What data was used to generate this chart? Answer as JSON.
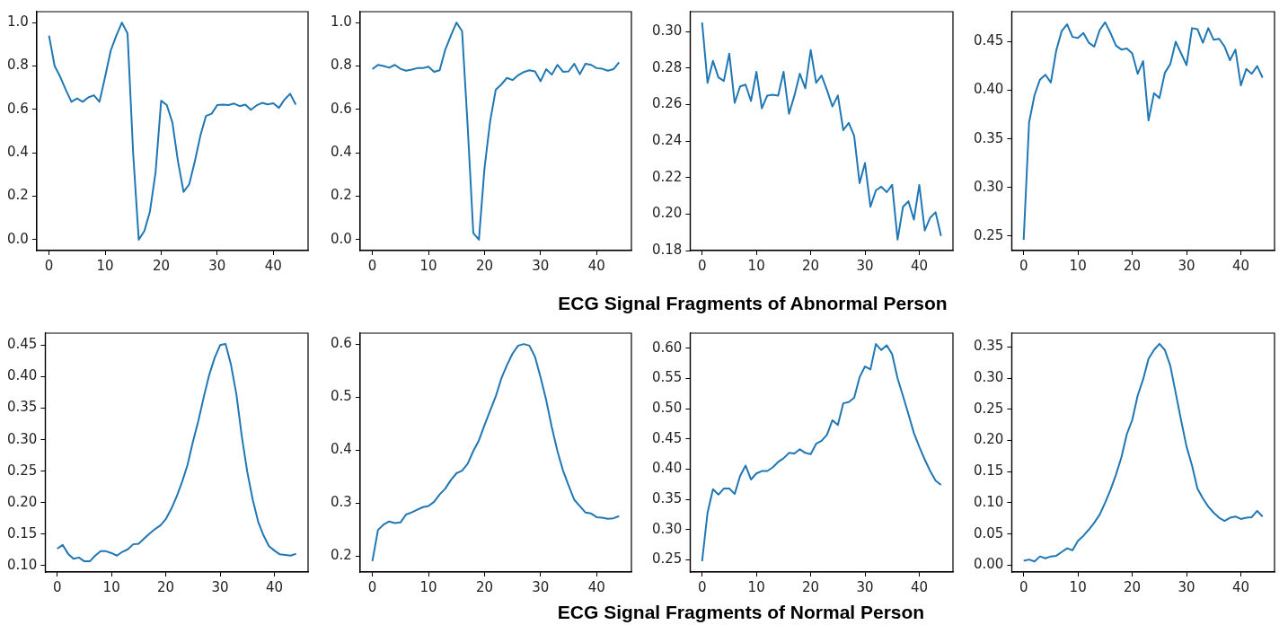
{
  "chart_data": [
    {
      "type": "line",
      "x": [
        0,
        1,
        2,
        3,
        4,
        5,
        6,
        7,
        8,
        9,
        10,
        11,
        12,
        13,
        14,
        15,
        16,
        17,
        18,
        19,
        20,
        21,
        22,
        23,
        24,
        25,
        26,
        27,
        28,
        29,
        30,
        31,
        32,
        33,
        34,
        35,
        36,
        37,
        38,
        39,
        40,
        41,
        42,
        43,
        44
      ],
      "series": [
        {
          "color": "#1f77b4",
          "values": [
            0.94,
            0.8,
            0.75,
            0.69,
            0.635,
            0.65,
            0.635,
            0.655,
            0.665,
            0.635,
            0.75,
            0.87,
            0.94,
            1.0,
            0.95,
            0.4,
            0.0,
            0.04,
            0.13,
            0.31,
            0.64,
            0.62,
            0.54,
            0.36,
            0.22,
            0.255,
            0.36,
            0.48,
            0.57,
            0.58,
            0.62,
            0.622,
            0.62,
            0.627,
            0.615,
            0.622,
            0.598,
            0.618,
            0.63,
            0.623,
            0.628,
            0.607,
            0.645,
            0.672,
            0.622
          ]
        }
      ],
      "xlim": [
        -2.2,
        46.2
      ],
      "xticks": [
        0,
        10,
        20,
        30,
        40
      ],
      "ylim": [
        -0.05,
        1.05
      ],
      "yticks": [
        {
          "value": 0,
          "label": "0.0"
        },
        0.2,
        0.4,
        0.6,
        0.8,
        {
          "value": 1,
          "label": "1.0"
        }
      ]
    },
    {
      "type": "line",
      "x": [
        0,
        1,
        2,
        3,
        4,
        5,
        6,
        7,
        8,
        9,
        10,
        11,
        12,
        13,
        14,
        15,
        16,
        17,
        18,
        19,
        20,
        21,
        22,
        23,
        24,
        25,
        26,
        27,
        28,
        29,
        30,
        31,
        32,
        33,
        34,
        35,
        36,
        37,
        38,
        39,
        40,
        41,
        42,
        43,
        44
      ],
      "series": [
        {
          "color": "#1f77b4",
          "values": [
            0.785,
            0.805,
            0.8,
            0.792,
            0.805,
            0.787,
            0.778,
            0.783,
            0.79,
            0.79,
            0.797,
            0.773,
            0.78,
            0.875,
            0.94,
            1.0,
            0.96,
            0.52,
            0.03,
            0.0,
            0.33,
            0.545,
            0.69,
            0.715,
            0.745,
            0.735,
            0.757,
            0.772,
            0.78,
            0.775,
            0.73,
            0.785,
            0.76,
            0.805,
            0.773,
            0.775,
            0.81,
            0.762,
            0.81,
            0.805,
            0.79,
            0.787,
            0.778,
            0.785,
            0.817
          ]
        }
      ],
      "xlim": [
        -2.2,
        46.2
      ],
      "xticks": [
        0,
        10,
        20,
        30,
        40
      ],
      "ylim": [
        -0.05,
        1.05
      ],
      "yticks": [
        {
          "value": 0,
          "label": "0.0"
        },
        0.2,
        0.4,
        0.6,
        0.8,
        {
          "value": 1,
          "label": "1.0"
        }
      ]
    },
    {
      "type": "line",
      "xlabel": "ECG Signal Fragments of Abnormal Person",
      "x": [
        0,
        1,
        2,
        3,
        4,
        5,
        6,
        7,
        8,
        9,
        10,
        11,
        12,
        13,
        14,
        15,
        16,
        17,
        18,
        19,
        20,
        21,
        22,
        23,
        24,
        25,
        26,
        27,
        28,
        29,
        30,
        31,
        32,
        33,
        34,
        35,
        36,
        37,
        38,
        39,
        40,
        41,
        42,
        43,
        44
      ],
      "series": [
        {
          "color": "#1f77b4",
          "values": [
            0.305,
            0.272,
            0.284,
            0.275,
            0.273,
            0.288,
            0.261,
            0.27,
            0.271,
            0.262,
            0.278,
            0.258,
            0.265,
            0.2655,
            0.265,
            0.278,
            0.255,
            0.265,
            0.277,
            0.269,
            0.29,
            0.272,
            0.276,
            0.268,
            0.259,
            0.265,
            0.246,
            0.25,
            0.243,
            0.217,
            0.228,
            0.204,
            0.213,
            0.215,
            0.212,
            0.216,
            0.186,
            0.204,
            0.207,
            0.197,
            0.216,
            0.191,
            0.198,
            0.201,
            0.188
          ]
        }
      ],
      "xlim": [
        -2.2,
        46.2
      ],
      "xticks": [
        0,
        10,
        20,
        30,
        40
      ],
      "ylim": [
        0.18,
        0.311
      ],
      "yticks": [
        0.18,
        {
          "value": 0.2,
          "label": "0.20"
        },
        0.22,
        0.24,
        0.26,
        0.28,
        {
          "value": 0.3,
          "label": "0.30"
        }
      ]
    },
    {
      "type": "line",
      "x": [
        0,
        1,
        2,
        3,
        4,
        5,
        6,
        7,
        8,
        9,
        10,
        11,
        12,
        13,
        14,
        15,
        16,
        17,
        18,
        19,
        20,
        21,
        22,
        23,
        24,
        25,
        26,
        27,
        28,
        29,
        30,
        31,
        32,
        33,
        34,
        35,
        36,
        37,
        38,
        39,
        40,
        41,
        42,
        43,
        44
      ],
      "series": [
        {
          "color": "#1f77b4",
          "values": [
            0.246,
            0.367,
            0.395,
            0.411,
            0.416,
            0.408,
            0.441,
            0.461,
            0.468,
            0.455,
            0.454,
            0.459,
            0.449,
            0.445,
            0.462,
            0.47,
            0.459,
            0.446,
            0.442,
            0.443,
            0.438,
            0.417,
            0.43,
            0.369,
            0.397,
            0.392,
            0.418,
            0.427,
            0.45,
            0.438,
            0.426,
            0.464,
            0.463,
            0.449,
            0.464,
            0.452,
            0.453,
            0.445,
            0.431,
            0.442,
            0.405,
            0.422,
            0.417,
            0.425,
            0.413
          ]
        }
      ],
      "xlim": [
        -2.2,
        46.2
      ],
      "xticks": [
        0,
        10,
        20,
        30,
        40
      ],
      "ylim": [
        0.235,
        0.481
      ],
      "yticks": [
        0.25,
        {
          "value": 0.3,
          "label": "0.30"
        },
        0.35,
        {
          "value": 0.4,
          "label": "0.40"
        },
        0.45
      ]
    },
    {
      "type": "line",
      "x": [
        0,
        1,
        2,
        3,
        4,
        5,
        6,
        7,
        8,
        9,
        10,
        11,
        12,
        13,
        14,
        15,
        16,
        17,
        18,
        19,
        20,
        21,
        22,
        23,
        24,
        25,
        26,
        27,
        28,
        29,
        30,
        31,
        32,
        33,
        34,
        35,
        36,
        37,
        38,
        39,
        40,
        41,
        42,
        43,
        44
      ],
      "series": [
        {
          "color": "#1f77b4",
          "values": [
            0.127,
            0.133,
            0.119,
            0.111,
            0.113,
            0.107,
            0.107,
            0.116,
            0.123,
            0.123,
            0.12,
            0.116,
            0.122,
            0.126,
            0.134,
            0.135,
            0.143,
            0.151,
            0.158,
            0.164,
            0.174,
            0.19,
            0.21,
            0.233,
            0.26,
            0.297,
            0.33,
            0.368,
            0.403,
            0.43,
            0.45,
            0.452,
            0.419,
            0.372,
            0.305,
            0.249,
            0.205,
            0.17,
            0.148,
            0.131,
            0.124,
            0.118,
            0.117,
            0.116,
            0.119
          ]
        }
      ],
      "xlim": [
        -2.2,
        46.2
      ],
      "xticks": [
        0,
        10,
        20,
        30,
        40
      ],
      "ylim": [
        0.09,
        0.469
      ],
      "yticks": [
        {
          "value": 0.1,
          "label": "0.10"
        },
        0.15,
        {
          "value": 0.2,
          "label": "0.20"
        },
        0.25,
        {
          "value": 0.3,
          "label": "0.30"
        },
        0.35,
        {
          "value": 0.4,
          "label": "0.40"
        },
        0.45
      ]
    },
    {
      "type": "line",
      "x": [
        0,
        1,
        2,
        3,
        4,
        5,
        6,
        7,
        8,
        9,
        10,
        11,
        12,
        13,
        14,
        15,
        16,
        17,
        18,
        19,
        20,
        21,
        22,
        23,
        24,
        25,
        26,
        27,
        28,
        29,
        30,
        31,
        32,
        33,
        34,
        35,
        36,
        37,
        38,
        39,
        40,
        41,
        42,
        43,
        44
      ],
      "series": [
        {
          "color": "#1f77b4",
          "values": [
            0.19,
            0.249,
            0.259,
            0.265,
            0.262,
            0.263,
            0.278,
            0.282,
            0.287,
            0.292,
            0.294,
            0.302,
            0.316,
            0.327,
            0.343,
            0.356,
            0.361,
            0.374,
            0.398,
            0.418,
            0.447,
            0.474,
            0.501,
            0.535,
            0.56,
            0.582,
            0.597,
            0.6,
            0.597,
            0.576,
            0.537,
            0.494,
            0.443,
            0.398,
            0.361,
            0.333,
            0.306,
            0.294,
            0.282,
            0.28,
            0.273,
            0.272,
            0.27,
            0.271,
            0.275
          ]
        }
      ],
      "xlim": [
        -2.2,
        46.2
      ],
      "xticks": [
        0,
        10,
        20,
        30,
        40
      ],
      "ylim": [
        0.1695,
        0.6205
      ],
      "yticks": [
        0.2,
        0.3,
        0.4,
        0.5,
        0.6
      ]
    },
    {
      "type": "line",
      "xlabel": "ECG Signal Fragments of Normal Person",
      "x": [
        0,
        1,
        2,
        3,
        4,
        5,
        6,
        7,
        8,
        9,
        10,
        11,
        12,
        13,
        14,
        15,
        16,
        17,
        18,
        19,
        20,
        21,
        22,
        23,
        24,
        25,
        26,
        27,
        28,
        29,
        30,
        31,
        32,
        33,
        34,
        35,
        36,
        37,
        38,
        39,
        40,
        41,
        42,
        43,
        44
      ],
      "series": [
        {
          "color": "#1f77b4",
          "values": [
            0.248,
            0.328,
            0.367,
            0.358,
            0.368,
            0.368,
            0.359,
            0.389,
            0.406,
            0.383,
            0.393,
            0.397,
            0.397,
            0.403,
            0.412,
            0.418,
            0.427,
            0.426,
            0.433,
            0.427,
            0.425,
            0.442,
            0.447,
            0.457,
            0.481,
            0.473,
            0.509,
            0.511,
            0.518,
            0.552,
            0.57,
            0.565,
            0.607,
            0.597,
            0.605,
            0.59,
            0.55,
            0.521,
            0.491,
            0.46,
            0.437,
            0.416,
            0.397,
            0.381,
            0.374
          ]
        }
      ],
      "xlim": [
        -2.2,
        46.2
      ],
      "xticks": [
        0,
        10,
        20,
        30,
        40
      ],
      "ylim": [
        0.23,
        0.625
      ],
      "yticks": [
        0.25,
        {
          "value": 0.3,
          "label": "0.30"
        },
        0.35,
        {
          "value": 0.4,
          "label": "0.40"
        },
        0.45,
        {
          "value": 0.5,
          "label": "0.50"
        },
        0.55,
        {
          "value": 0.6,
          "label": "0.60"
        }
      ]
    },
    {
      "type": "line",
      "x": [
        0,
        1,
        2,
        3,
        4,
        5,
        6,
        7,
        8,
        9,
        10,
        11,
        12,
        13,
        14,
        15,
        16,
        17,
        18,
        19,
        20,
        21,
        22,
        23,
        24,
        25,
        26,
        27,
        28,
        29,
        30,
        31,
        32,
        33,
        34,
        35,
        36,
        37,
        38,
        39,
        40,
        41,
        42,
        43,
        44
      ],
      "series": [
        {
          "color": "#1f77b4",
          "values": [
            0.007,
            0.009,
            0.006,
            0.014,
            0.011,
            0.014,
            0.015,
            0.021,
            0.027,
            0.024,
            0.039,
            0.047,
            0.057,
            0.068,
            0.081,
            0.1,
            0.121,
            0.145,
            0.173,
            0.21,
            0.233,
            0.272,
            0.298,
            0.331,
            0.345,
            0.355,
            0.345,
            0.32,
            0.276,
            0.232,
            0.19,
            0.16,
            0.123,
            0.107,
            0.094,
            0.084,
            0.076,
            0.071,
            0.076,
            0.078,
            0.074,
            0.076,
            0.077,
            0.087,
            0.078
          ]
        }
      ],
      "xlim": [
        -2.2,
        46.2
      ],
      "xticks": [
        0,
        10,
        20,
        30,
        40
      ],
      "ylim": [
        -0.011,
        0.372
      ],
      "yticks": [
        {
          "value": 0,
          "label": "0.00"
        },
        0.05,
        {
          "value": 0.1,
          "label": "0.10"
        },
        0.15,
        {
          "value": 0.2,
          "label": "0.20"
        },
        0.25,
        {
          "value": 0.3,
          "label": "0.30"
        },
        0.35
      ]
    }
  ]
}
